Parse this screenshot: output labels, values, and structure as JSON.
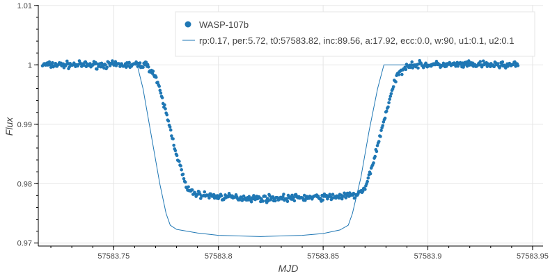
{
  "colors": {
    "series": "#1f77b4",
    "grid": "#e5e5e5",
    "axis": "#000000",
    "text": "#444444"
  },
  "chart_data": {
    "type": "scatter",
    "xlabel": "MJD",
    "ylabel": "Flux",
    "xlim": [
      57583.714,
      57583.955
    ],
    "ylim": [
      0.9695,
      1.0101
    ],
    "grid": true,
    "legend_position": "top-right",
    "x_ticks": [
      {
        "value": 57583.75,
        "label": "57583.75"
      },
      {
        "value": 57583.8,
        "label": "57583.8"
      },
      {
        "value": 57583.85,
        "label": "57583.85"
      },
      {
        "value": 57583.9,
        "label": "57583.9"
      },
      {
        "value": 57583.95,
        "label": "57583.95"
      }
    ],
    "y_ticks": [
      {
        "value": 0.97,
        "label": "0.97"
      },
      {
        "value": 0.98,
        "label": "0.98"
      },
      {
        "value": 0.99,
        "label": "0.99"
      },
      {
        "value": 1.0,
        "label": "1"
      },
      {
        "value": 1.01,
        "label": "1.01"
      }
    ],
    "series": [
      {
        "name": "WASP-107b",
        "kind": "scatter",
        "x_range": [
          57583.716,
          57583.943
        ],
        "approx_profile": [
          [
            57583.716,
            1.0
          ],
          [
            57583.766,
            1.0
          ],
          [
            57583.77,
            0.998
          ],
          [
            57583.775,
            0.992
          ],
          [
            57583.78,
            0.985
          ],
          [
            57583.785,
            0.979
          ],
          [
            57583.79,
            0.9782
          ],
          [
            57583.8,
            0.9778
          ],
          [
            57583.82,
            0.9775
          ],
          [
            57583.85,
            0.9777
          ],
          [
            57583.865,
            0.978
          ],
          [
            57583.87,
            0.979
          ],
          [
            57583.875,
            0.985
          ],
          [
            57583.88,
            0.992
          ],
          [
            57583.885,
            0.998
          ],
          [
            57583.89,
            1.0
          ],
          [
            57583.943,
            1.0
          ]
        ]
      },
      {
        "name": "rp:0.17, per:5.72, t0:57583.82, inc:89.56, a:17.92, ecc:0.0, w:90, u1:0.1, u2:0.1",
        "kind": "line",
        "points": [
          [
            57583.716,
            1.0
          ],
          [
            57583.7612,
            1.0
          ],
          [
            57583.764,
            0.996
          ],
          [
            57583.768,
            0.988
          ],
          [
            57583.772,
            0.98
          ],
          [
            57583.775,
            0.975
          ],
          [
            57583.777,
            0.973
          ],
          [
            57583.78,
            0.9723
          ],
          [
            57583.79,
            0.9717
          ],
          [
            57583.8,
            0.9713
          ],
          [
            57583.82,
            0.9711
          ],
          [
            57583.84,
            0.9713
          ],
          [
            57583.85,
            0.9716
          ],
          [
            57583.858,
            0.9722
          ],
          [
            57583.862,
            0.973
          ],
          [
            57583.864,
            0.975
          ],
          [
            57583.868,
            0.981
          ],
          [
            57583.872,
            0.989
          ],
          [
            57583.876,
            0.996
          ],
          [
            57583.879,
            1.0
          ],
          [
            57583.89,
            1.0
          ]
        ]
      }
    ]
  }
}
